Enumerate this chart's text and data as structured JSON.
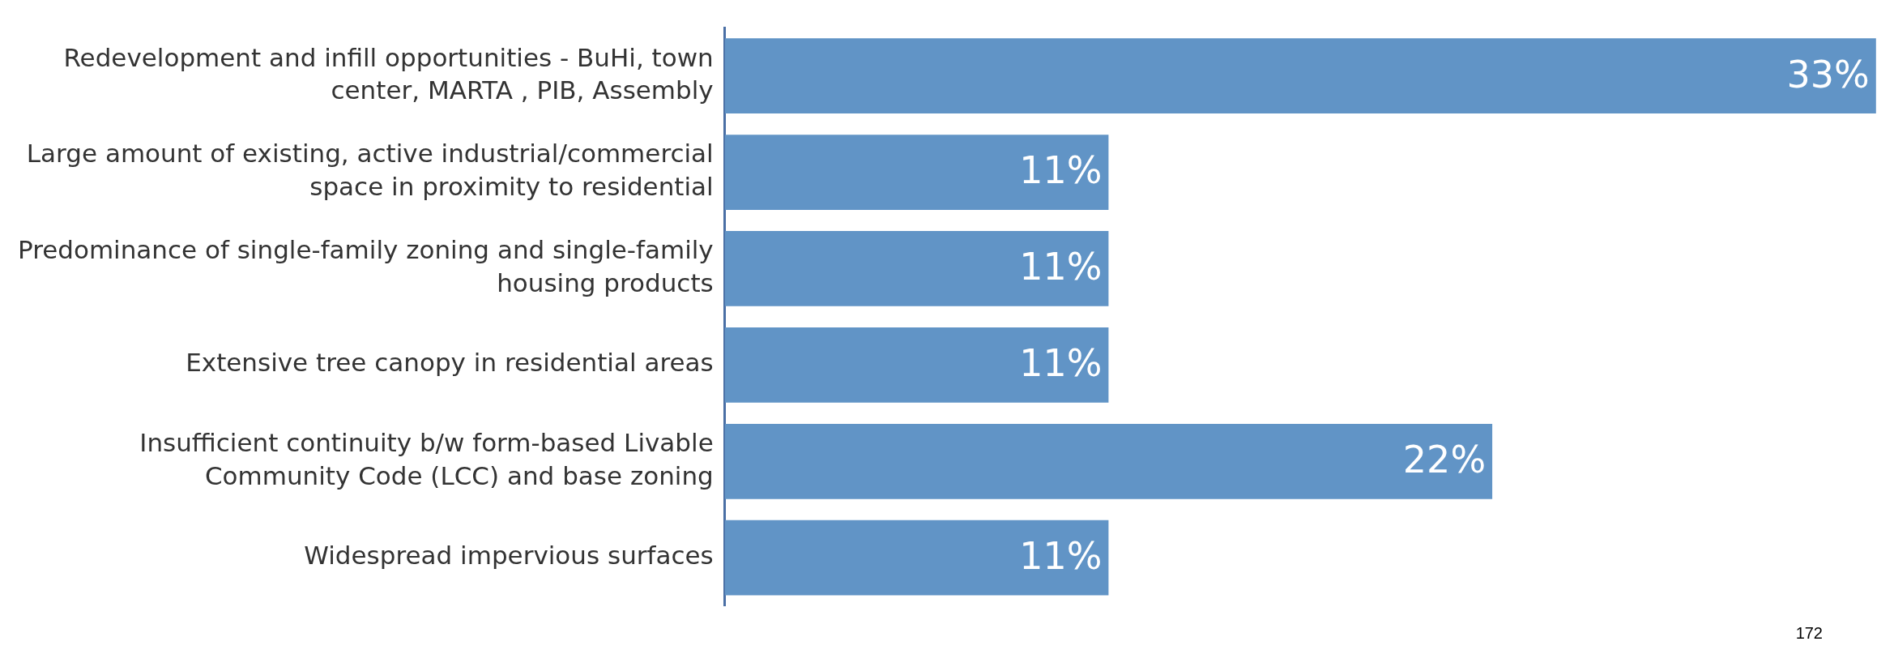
{
  "chart_data": {
    "type": "bar",
    "orientation": "horizontal",
    "categories": [
      "Redevelopment and infill opportunities - BuHi, town center, MARTA , PIB, Assembly",
      "Large amount of existing, active industrial/commercial space in proximity to residential",
      "Predominance of single-family zoning and single-family housing products",
      "Extensive tree canopy in residential areas",
      "Insufficient continuity b/w form-based Livable Community Code (LCC) and base zoning",
      "Widespread impervious surfaces"
    ],
    "values": [
      33,
      11,
      11,
      11,
      22,
      11
    ],
    "value_labels": [
      "33%",
      "11%",
      "11%",
      "11%",
      "22%",
      "11%"
    ],
    "color": "#6194c6",
    "tick_labels": "y",
    "legend": false,
    "annotations": [
      "172"
    ]
  }
}
